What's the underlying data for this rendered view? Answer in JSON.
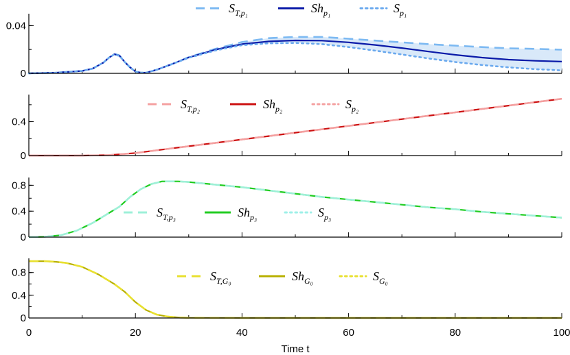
{
  "chart_data": {
    "type": "line",
    "xlabel": "Time t",
    "xlim": [
      0,
      100
    ],
    "x_ticks": [
      0,
      20,
      40,
      60,
      80,
      100
    ],
    "grid": false,
    "panels": [
      {
        "id": "p1",
        "ylim": [
          0,
          0.05
        ],
        "y_ticks": [
          0,
          0.04
        ],
        "y_tick_labels": [
          "0",
          "0.04"
        ],
        "band": true,
        "legend": [
          {
            "style": "dashed",
            "color": "#7cb9f2",
            "base": "S",
            "sub": "T,p₁"
          },
          {
            "style": "solid",
            "color": "#0a1aa8",
            "base": "Sh",
            "sub": "p₁"
          },
          {
            "style": "dotted",
            "color": "#6aa9ee",
            "base": "S",
            "sub": "p₁"
          }
        ],
        "series": [
          {
            "style": "dashed",
            "color": "#7cb9f2",
            "x": [
              0,
              5,
              10,
              12,
              14,
              15,
              16,
              17,
              18,
              19,
              20,
              21,
              22,
              24,
              27,
              30,
              35,
              40,
              45,
              50,
              55,
              60,
              65,
              70,
              75,
              80,
              85,
              90,
              95,
              100
            ],
            "y": [
              0,
              0.0005,
              0.002,
              0.004,
              0.009,
              0.013,
              0.0165,
              0.015,
              0.0095,
              0.005,
              0.0015,
              0.0005,
              0.0005,
              0.003,
              0.008,
              0.0135,
              0.0205,
              0.0262,
              0.0295,
              0.0305,
              0.0305,
              0.029,
              0.0275,
              0.026,
              0.0245,
              0.0232,
              0.022,
              0.021,
              0.0205,
              0.0198
            ]
          },
          {
            "style": "solid",
            "color": "#0a1aa8",
            "x": [
              0,
              5,
              10,
              12,
              14,
              15,
              16,
              17,
              18,
              19,
              20,
              21,
              22,
              24,
              27,
              30,
              35,
              40,
              45,
              50,
              55,
              60,
              65,
              70,
              75,
              80,
              85,
              90,
              95,
              100
            ],
            "y": [
              0,
              0.0005,
              0.002,
              0.004,
              0.009,
              0.013,
              0.016,
              0.0148,
              0.0095,
              0.005,
              0.0015,
              0.0005,
              0.0005,
              0.003,
              0.008,
              0.0133,
              0.0198,
              0.0245,
              0.0268,
              0.0276,
              0.0274,
              0.026,
              0.0238,
              0.0212,
              0.0183,
              0.0155,
              0.0132,
              0.0115,
              0.0105,
              0.0098
            ]
          },
          {
            "style": "dotted",
            "color": "#6aa9ee",
            "x": [
              0,
              5,
              10,
              12,
              14,
              15,
              16,
              17,
              18,
              19,
              20,
              21,
              22,
              24,
              27,
              30,
              35,
              40,
              45,
              50,
              55,
              60,
              65,
              70,
              75,
              80,
              85,
              90,
              95,
              100
            ],
            "y": [
              0,
              0.0005,
              0.002,
              0.004,
              0.009,
              0.013,
              0.0158,
              0.0146,
              0.0094,
              0.005,
              0.0015,
              0.0005,
              0.0005,
              0.003,
              0.008,
              0.013,
              0.0192,
              0.0236,
              0.0252,
              0.0255,
              0.0245,
              0.022,
              0.019,
              0.0158,
              0.0125,
              0.0095,
              0.007,
              0.005,
              0.0035,
              0.0025
            ]
          }
        ]
      },
      {
        "id": "p2",
        "ylim": [
          0,
          0.72
        ],
        "y_ticks": [
          0,
          0.4
        ],
        "y_tick_labels": [
          "0",
          "0.4"
        ],
        "band": false,
        "legend": [
          {
            "style": "dashed",
            "color": "#f4a0a0",
            "base": "S",
            "sub": "T,p₂"
          },
          {
            "style": "solid",
            "color": "#cc1111",
            "base": "Sh",
            "sub": "p₂"
          },
          {
            "style": "dotted",
            "color": "#f4a0a0",
            "base": "S",
            "sub": "p₂"
          }
        ],
        "series": [
          {
            "style": "solid",
            "color": "#cc1111",
            "x": [
              0,
              10,
              15,
              20,
              25,
              30,
              35,
              40,
              45,
              50,
              55,
              60,
              65,
              70,
              75,
              80,
              85,
              90,
              95,
              100
            ],
            "y": [
              0,
              0,
              0.005,
              0.03,
              0.07,
              0.11,
              0.15,
              0.19,
              0.23,
              0.27,
              0.31,
              0.35,
              0.39,
              0.43,
              0.47,
              0.51,
              0.55,
              0.59,
              0.63,
              0.67
            ]
          },
          {
            "style": "dashed",
            "color": "#f4a0a0",
            "x": [
              0,
              10,
              15,
              20,
              25,
              30,
              35,
              40,
              45,
              50,
              55,
              60,
              65,
              70,
              75,
              80,
              85,
              90,
              95,
              100
            ],
            "y": [
              0,
              0,
              0.005,
              0.03,
              0.07,
              0.11,
              0.15,
              0.19,
              0.23,
              0.27,
              0.31,
              0.35,
              0.39,
              0.43,
              0.47,
              0.51,
              0.55,
              0.59,
              0.63,
              0.67
            ]
          }
        ]
      },
      {
        "id": "p3",
        "ylim": [
          0,
          0.92
        ],
        "y_ticks": [
          0,
          0.4,
          0.8
        ],
        "y_tick_labels": [
          "0",
          "0.4",
          "0.8"
        ],
        "band": false,
        "legend": [
          {
            "style": "dashed",
            "color": "#9ef0d8",
            "base": "S",
            "sub": "T,p₃"
          },
          {
            "style": "solid",
            "color": "#22cc22",
            "base": "Sh",
            "sub": "p₃"
          },
          {
            "style": "dotted",
            "color": "#9ef0e8",
            "base": "S",
            "sub": "p₃"
          }
        ],
        "series": [
          {
            "style": "solid",
            "color": "#22cc22",
            "x": [
              0,
              3,
              6,
              9,
              12,
              15,
              17,
              19,
              21,
              23,
              25,
              28,
              30,
              35,
              40,
              45,
              50,
              55,
              60,
              65,
              70,
              75,
              80,
              85,
              90,
              95,
              100
            ],
            "y": [
              0,
              0.005,
              0.03,
              0.1,
              0.22,
              0.37,
              0.47,
              0.62,
              0.74,
              0.82,
              0.86,
              0.86,
              0.85,
              0.81,
              0.77,
              0.72,
              0.67,
              0.62,
              0.58,
              0.54,
              0.5,
              0.46,
              0.43,
              0.39,
              0.36,
              0.33,
              0.3
            ]
          },
          {
            "style": "dashed",
            "color": "#9ef0d8",
            "x": [
              0,
              3,
              6,
              9,
              12,
              15,
              17,
              19,
              21,
              23,
              25,
              28,
              30,
              35,
              40,
              45,
              50,
              55,
              60,
              65,
              70,
              75,
              80,
              85,
              90,
              95,
              100
            ],
            "y": [
              0,
              0.005,
              0.03,
              0.1,
              0.22,
              0.37,
              0.47,
              0.62,
              0.74,
              0.82,
              0.86,
              0.86,
              0.85,
              0.81,
              0.77,
              0.72,
              0.67,
              0.62,
              0.58,
              0.54,
              0.5,
              0.46,
              0.43,
              0.39,
              0.36,
              0.33,
              0.3
            ]
          }
        ]
      },
      {
        "id": "G0",
        "ylim": [
          0,
          1.05
        ],
        "y_ticks": [
          0,
          0.4,
          0.8
        ],
        "y_tick_labels": [
          "0",
          "0.4",
          "0.8"
        ],
        "band": false,
        "legend": [
          {
            "style": "dashed",
            "color": "#e8e030",
            "base": "S",
            "sub": "T,G₀"
          },
          {
            "style": "solid",
            "color": "#b8b000",
            "base": "Sh",
            "sub": "G₀"
          },
          {
            "style": "dotted",
            "color": "#e8e030",
            "base": "S",
            "sub": "G₀"
          }
        ],
        "series": [
          {
            "style": "solid",
            "color": "#b8b000",
            "x": [
              0,
              3,
              5,
              7,
              10,
              13,
              16,
              18,
              20,
              22,
              24,
              26,
              28,
              30,
              35,
              40,
              50,
              60,
              70,
              80,
              90,
              100
            ],
            "y": [
              1,
              1,
              0.99,
              0.97,
              0.9,
              0.77,
              0.6,
              0.46,
              0.28,
              0.14,
              0.06,
              0.025,
              0.01,
              0.004,
              0.002,
              0.001,
              0.001,
              0.001,
              0.001,
              0.001,
              0.001,
              0.001
            ]
          },
          {
            "style": "dashed",
            "color": "#e8e030",
            "x": [
              0,
              3,
              5,
              7,
              10,
              13,
              16,
              18,
              20,
              22,
              24,
              26,
              28,
              30,
              35,
              40,
              50,
              60,
              70,
              80,
              90,
              100
            ],
            "y": [
              1,
              1,
              0.99,
              0.97,
              0.9,
              0.77,
              0.6,
              0.46,
              0.28,
              0.14,
              0.06,
              0.025,
              0.01,
              0.004,
              0.002,
              0.001,
              0.001,
              0.001,
              0.001,
              0.001,
              0.001,
              0.001
            ]
          }
        ]
      }
    ]
  }
}
